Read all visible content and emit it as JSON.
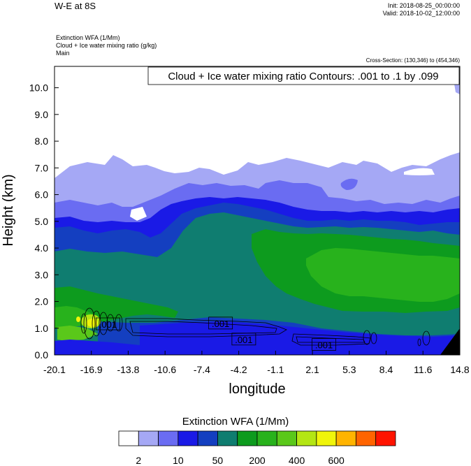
{
  "header": {
    "title": "W-E at 8S",
    "init": "Init: 2018-08-25_00:00:00",
    "valid": "Valid: 2018-10-02_12:00:00",
    "field_line": "Extinction WFA   (1/Mm)",
    "contour_line": "Cloud + Ice water mixing ratio   (g/kg)",
    "domain_line": "Main",
    "cross_section": "Cross-Section: (130,346) to (454,346)"
  },
  "chart_data": {
    "type": "heatmap",
    "annotation": "Cloud + Ice water mixing ratio Contours: .001 to .1 by .099",
    "xlabel": "longitude",
    "ylabel": "Height (km)",
    "x_ticks": [
      "-20.1",
      "-16.9",
      "-13.8",
      "-10.6",
      "-7.4",
      "-4.2",
      "-1.1",
      "2.1",
      "5.3",
      "8.4",
      "11.6",
      "14.8"
    ],
    "y_ticks": [
      "0.0",
      "1.0",
      "2.0",
      "3.0",
      "4.0",
      "5.0",
      "6.0",
      "7.0",
      "8.0",
      "9.0",
      "10.0"
    ],
    "xlim": [
      -20.1,
      14.8
    ],
    "ylim": [
      0,
      10.8
    ],
    "contour_labels": [
      {
        "text": ".001",
        "x": -15.5,
        "y": 1.15
      },
      {
        "text": ".001",
        "x": -5.8,
        "y": 1.18
      },
      {
        "text": ".001",
        "x": -3.8,
        "y": 0.58
      },
      {
        "text": ".001",
        "x": 3.1,
        "y": 0.38
      }
    ],
    "colorbar": {
      "title": "Extinction WFA  (1/Mm)",
      "colors": [
        "#ffffff",
        "#a5a8f5",
        "#6a6cf2",
        "#1a1ae6",
        "#143fc0",
        "#0f7d70",
        "#0d9b1e",
        "#28b21c",
        "#5ac81a",
        "#b4e614",
        "#f0f50a",
        "#ffb400",
        "#ff6400",
        "#ff1400"
      ],
      "labels": [
        "2",
        "10",
        "50",
        "200",
        "400",
        "600"
      ]
    }
  }
}
